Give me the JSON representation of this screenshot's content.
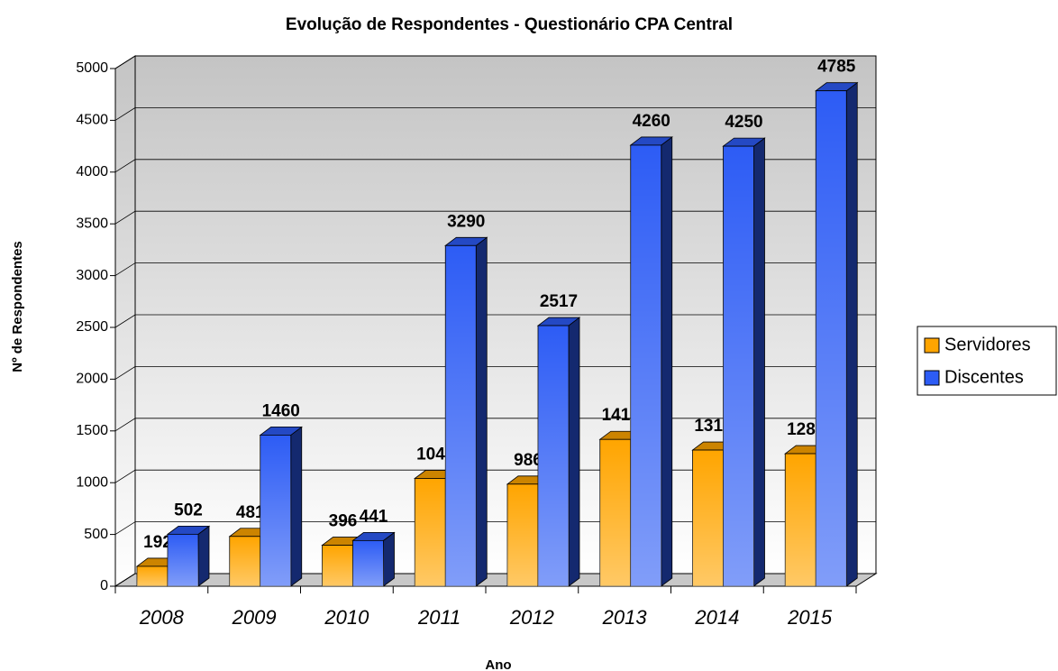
{
  "chart_data": {
    "type": "bar",
    "title": "Evolução de Respondentes - Questionário CPA Central",
    "x_label": "Ano",
    "y_label": "Nº de Respondentes",
    "categories": [
      "2008",
      "2009",
      "2010",
      "2011",
      "2012",
      "2013",
      "2014",
      "2015"
    ],
    "series": [
      {
        "name": "Servidores",
        "color": "#ffa500",
        "values": [
          192,
          481,
          396,
          1041,
          986,
          1418,
          1315,
          1280
        ]
      },
      {
        "name": "Discentes",
        "color": "#2d5cf5",
        "values": [
          502,
          1460,
          441,
          3290,
          2517,
          4260,
          4250,
          4785
        ]
      }
    ],
    "ylim": [
      0,
      5000
    ],
    "yticks": [
      0,
      500,
      1000,
      1500,
      2000,
      2500,
      3000,
      3500,
      4000,
      4500,
      5000
    ],
    "grid": true,
    "legend": "right"
  }
}
